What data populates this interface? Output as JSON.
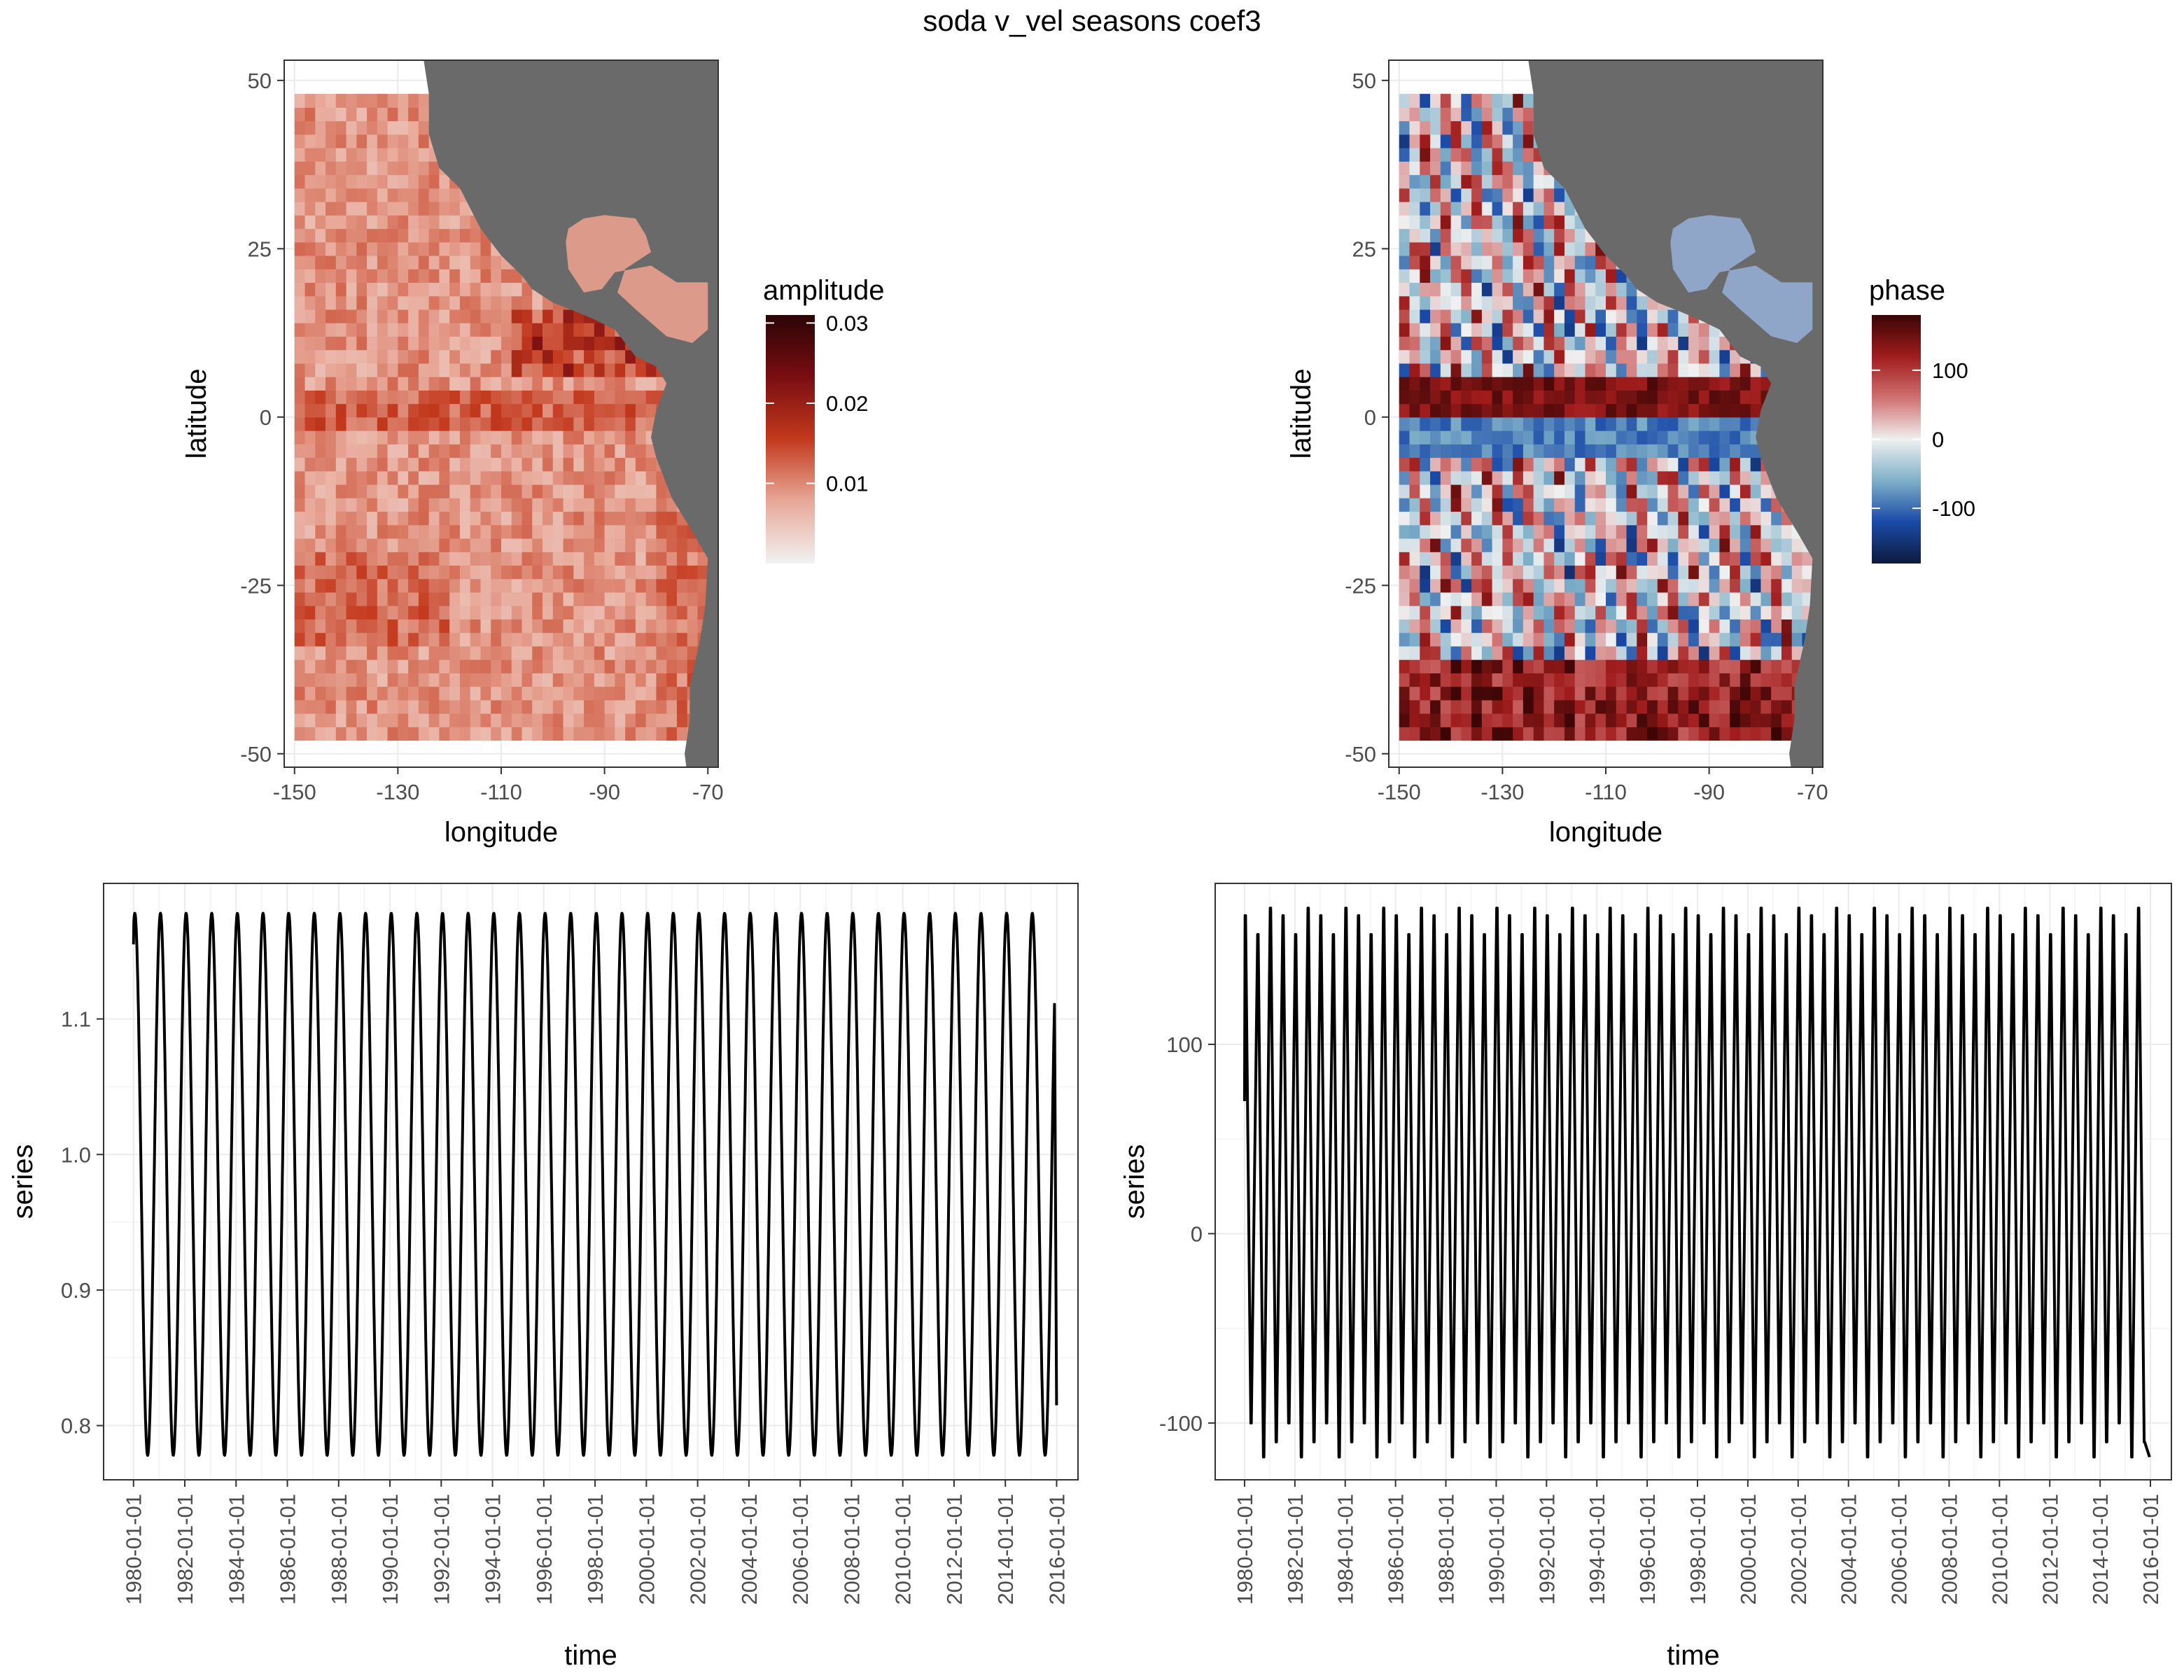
{
  "figure": {
    "title": "soda v_vel seasons coef3"
  },
  "chart_data": [
    {
      "id": "amplitude_map",
      "type": "heatmap",
      "title": "",
      "xlabel": "longitude",
      "ylabel": "latitude",
      "xlim": [
        -152,
        -68
      ],
      "ylim": [
        -52,
        53
      ],
      "x_ticks": [
        -150,
        -130,
        -110,
        -90,
        -70
      ],
      "x_tick_labels": [
        "-150",
        "-130",
        "-110",
        "-90",
        "-70"
      ],
      "y_ticks": [
        -50,
        -25,
        0,
        25,
        50
      ],
      "y_tick_labels": [
        "-50",
        "-25",
        "0",
        "25",
        "50"
      ],
      "data_extent": {
        "lon": [
          -150,
          -70
        ],
        "lat": [
          -48,
          48
        ]
      },
      "legend": {
        "title": "amplitude",
        "range": [
          0,
          0.031
        ],
        "ticks": [
          0.01,
          0.02,
          0.03
        ],
        "tick_labels": [
          "0.01",
          "0.02",
          "0.03"
        ],
        "colors": [
          "#f2f2f2",
          "#e8a898",
          "#c3391d",
          "#7a0d12",
          "#2b0505"
        ],
        "placement": "right"
      },
      "land_color": "#6a6a6a",
      "grid": true
    },
    {
      "id": "phase_map",
      "type": "heatmap",
      "title": "",
      "xlabel": "longitude",
      "ylabel": "latitude",
      "xlim": [
        -152,
        -68
      ],
      "ylim": [
        -52,
        53
      ],
      "x_ticks": [
        -150,
        -130,
        -110,
        -90,
        -70
      ],
      "x_tick_labels": [
        "-150",
        "-130",
        "-110",
        "-90",
        "-70"
      ],
      "y_ticks": [
        -50,
        -25,
        0,
        25,
        50
      ],
      "y_tick_labels": [
        "-50",
        "-25",
        "0",
        "25",
        "50"
      ],
      "data_extent": {
        "lon": [
          -150,
          -70
        ],
        "lat": [
          -48,
          48
        ]
      },
      "legend": {
        "title": "phase",
        "range": [
          -180,
          180
        ],
        "ticks": [
          -100,
          0,
          100
        ],
        "tick_labels": [
          "-100",
          "0",
          "100"
        ],
        "colors": [
          "#0d1a3d",
          "#1a4aa8",
          "#7fb0c8",
          "#f0f0f0",
          "#d07070",
          "#a01c1c",
          "#3a0505"
        ],
        "placement": "right"
      },
      "land_color": "#6a6a6a",
      "grid": true
    },
    {
      "id": "amplitude_series",
      "type": "line",
      "title": "",
      "xlabel": "time",
      "ylabel": "series",
      "xlim": [
        "1978-11-01",
        "2016-11-01"
      ],
      "ylim": [
        0.76,
        1.2
      ],
      "x_ticks": [
        "1980-01-01",
        "1982-01-01",
        "1984-01-01",
        "1986-01-01",
        "1988-01-01",
        "1990-01-01",
        "1992-01-01",
        "1994-01-01",
        "1996-01-01",
        "1998-01-01",
        "2000-01-01",
        "2002-01-01",
        "2004-01-01",
        "2006-01-01",
        "2008-01-01",
        "2010-01-01",
        "2012-01-01",
        "2014-01-01",
        "2016-01-01"
      ],
      "y_ticks": [
        0.8,
        0.9,
        1.0,
        1.1
      ],
      "y_tick_labels": [
        "0.8",
        "0.9",
        "1.0",
        "1.1"
      ],
      "series": [
        {
          "start": "1980-01-01",
          "end": "2015-12-01",
          "period_years": 1,
          "max": 1.178,
          "min": 0.778,
          "first": 1.155,
          "last": 0.815
        }
      ],
      "line_color": "#000000",
      "grid": true
    },
    {
      "id": "phase_series",
      "type": "line",
      "title": "",
      "xlabel": "time",
      "ylabel": "series",
      "xlim": [
        "1978-11-01",
        "2016-11-01"
      ],
      "ylim": [
        -130,
        185
      ],
      "x_ticks": [
        "1980-01-01",
        "1982-01-01",
        "1984-01-01",
        "1986-01-01",
        "1988-01-01",
        "1990-01-01",
        "1992-01-01",
        "1994-01-01",
        "1996-01-01",
        "1998-01-01",
        "2000-01-01",
        "2002-01-01",
        "2004-01-01",
        "2006-01-01",
        "2008-01-01",
        "2010-01-01",
        "2012-01-01",
        "2014-01-01",
        "2016-01-01"
      ],
      "y_ticks": [
        -100,
        0,
        100
      ],
      "y_tick_labels": [
        "-100",
        "0",
        "100"
      ],
      "series": [
        {
          "start": "1980-01-01",
          "end": "2015-12-01",
          "period_years": 1,
          "high_values": [
            168,
            158,
            172
          ],
          "low_values": [
            -100,
            -118,
            -110
          ],
          "first": 70,
          "last": -118
        }
      ],
      "line_color": "#000000",
      "grid": true
    }
  ]
}
